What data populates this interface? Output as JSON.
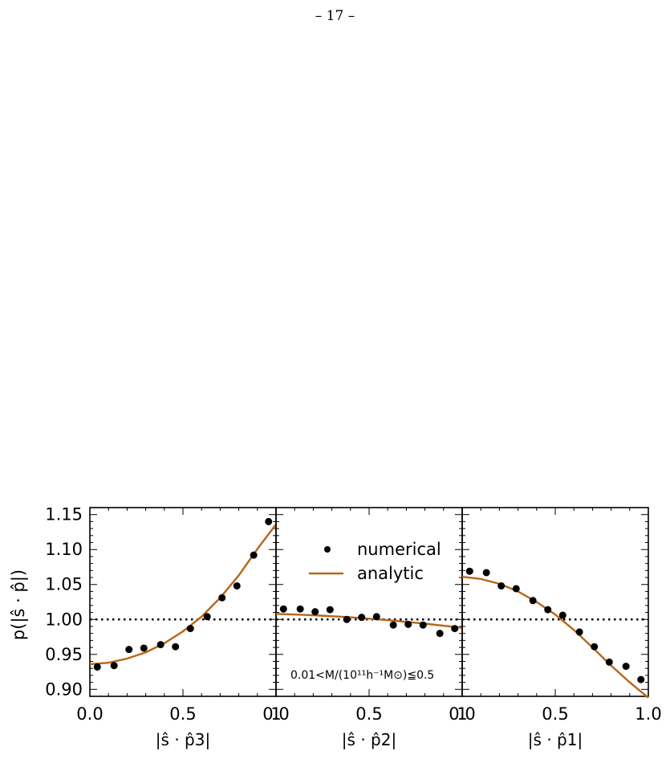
{
  "page": {
    "number_label": "– 17 –"
  },
  "figure": {
    "ylabel": "p(|ŝ · p̂|)",
    "legend": {
      "numerical": "numerical",
      "analytic": "analytic"
    },
    "annotation": "0.01<M/(10¹¹h⁻¹M⊙)≦0.5",
    "y_tick_labels": [
      "0.90",
      "0.95",
      "1.00",
      "1.05",
      "1.10",
      "1.15"
    ],
    "x_tick_labels": [
      {
        "panel": 1,
        "labels": [
          "0.0",
          "0.5",
          "1"
        ]
      },
      {
        "panel": 2,
        "labels": [
          "0.0",
          "0.5",
          "1"
        ]
      },
      {
        "panel": 3,
        "labels": [
          "0.0",
          "0.5",
          "1.0"
        ]
      }
    ],
    "colors": {
      "analytic": "#b8651a",
      "numerical": "#000000",
      "reference": "#000000"
    }
  },
  "chart_data": [
    {
      "type": "scatter",
      "xlabel": "|ŝ · p̂3|",
      "ylabel": "p(|ŝ · p̂|)",
      "xlim": [
        0,
        1
      ],
      "ylim": [
        0.89,
        1.16
      ],
      "reference_line": 1.0,
      "series": [
        {
          "name": "numerical",
          "x": [
            0.04,
            0.13,
            0.21,
            0.29,
            0.38,
            0.46,
            0.54,
            0.63,
            0.71,
            0.79,
            0.88,
            0.96
          ],
          "y": [
            0.932,
            0.934,
            0.957,
            0.959,
            0.964,
            0.961,
            0.987,
            1.004,
            1.031,
            1.048,
            1.092,
            1.14
          ]
        },
        {
          "name": "analytic",
          "x": [
            0.0,
            0.1,
            0.2,
            0.3,
            0.4,
            0.5,
            0.6,
            0.7,
            0.8,
            0.9,
            1.0
          ],
          "y": [
            0.936,
            0.938,
            0.944,
            0.953,
            0.966,
            0.983,
            1.004,
            1.031,
            1.063,
            1.101,
            1.136
          ]
        }
      ]
    },
    {
      "type": "scatter",
      "xlabel": "|ŝ · p̂2|",
      "xlim": [
        0,
        1
      ],
      "ylim": [
        0.89,
        1.16
      ],
      "reference_line": 1.0,
      "series": [
        {
          "name": "numerical",
          "x": [
            0.04,
            0.13,
            0.21,
            0.29,
            0.38,
            0.46,
            0.54,
            0.63,
            0.71,
            0.79,
            0.88,
            0.96
          ],
          "y": [
            1.015,
            1.015,
            1.011,
            1.014,
            1.0,
            1.003,
            1.004,
            0.992,
            0.993,
            0.992,
            0.98,
            0.987
          ]
        },
        {
          "name": "analytic",
          "x": [
            0.0,
            0.2,
            0.4,
            0.6,
            0.8,
            1.0
          ],
          "y": [
            1.008,
            1.006,
            1.003,
            0.999,
            0.994,
            0.988
          ]
        }
      ]
    },
    {
      "type": "scatter",
      "xlabel": "|ŝ · p̂1|",
      "xlim": [
        0,
        1
      ],
      "ylim": [
        0.89,
        1.16
      ],
      "reference_line": 1.0,
      "series": [
        {
          "name": "numerical",
          "x": [
            0.04,
            0.13,
            0.21,
            0.29,
            0.38,
            0.46,
            0.54,
            0.63,
            0.71,
            0.79,
            0.88,
            0.96
          ],
          "y": [
            1.069,
            1.067,
            1.048,
            1.044,
            1.027,
            1.014,
            1.006,
            0.982,
            0.961,
            0.939,
            0.933,
            0.914
          ]
        },
        {
          "name": "analytic",
          "x": [
            0.0,
            0.1,
            0.2,
            0.3,
            0.4,
            0.5,
            0.6,
            0.7,
            0.8,
            0.9,
            1.0
          ],
          "y": [
            1.061,
            1.058,
            1.051,
            1.04,
            1.025,
            1.007,
            0.985,
            0.96,
            0.934,
            0.91,
            0.888
          ]
        }
      ]
    }
  ]
}
